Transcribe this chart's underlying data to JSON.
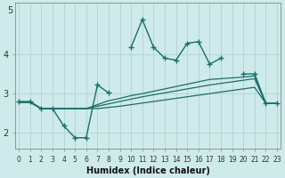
{
  "xlabel": "Humidex (Indice chaleur)",
  "bg_color": "#ceeaea",
  "grid_color": "#b0d4d4",
  "line_color": "#1a6e6a",
  "x_values": [
    0,
    1,
    2,
    3,
    4,
    5,
    6,
    7,
    8,
    9,
    10,
    11,
    12,
    13,
    14,
    15,
    16,
    17,
    18,
    19,
    20,
    21,
    22,
    23
  ],
  "line1_y": [
    2.8,
    2.8,
    2.62,
    2.62,
    2.18,
    1.88,
    1.88,
    3.22,
    3.02,
    null,
    4.18,
    4.88,
    4.18,
    3.9,
    3.85,
    4.28,
    4.32,
    3.75,
    3.9,
    null,
    3.5,
    3.5,
    2.75,
    2.75
  ],
  "line2_y": [
    2.78,
    2.78,
    2.62,
    2.62,
    2.62,
    2.62,
    2.62,
    2.72,
    2.82,
    2.88,
    2.95,
    3.0,
    3.06,
    3.12,
    3.18,
    3.24,
    3.3,
    3.36,
    3.38,
    3.4,
    3.42,
    3.45,
    2.75,
    2.75
  ],
  "line3_y": [
    2.78,
    2.78,
    2.62,
    2.62,
    2.62,
    2.62,
    2.62,
    2.68,
    2.74,
    2.8,
    2.86,
    2.92,
    2.97,
    3.02,
    3.07,
    3.12,
    3.17,
    3.22,
    3.26,
    3.3,
    3.34,
    3.38,
    2.75,
    2.75
  ],
  "line4_y": [
    2.78,
    2.78,
    2.62,
    2.62,
    2.62,
    2.62,
    2.62,
    2.62,
    2.65,
    2.68,
    2.72,
    2.76,
    2.8,
    2.84,
    2.88,
    2.92,
    2.96,
    3.0,
    3.04,
    3.08,
    3.12,
    3.16,
    2.75,
    2.75
  ],
  "ylim": [
    1.6,
    5.3
  ],
  "yticks": [
    2,
    3,
    4
  ],
  "ytop_label": "5",
  "xticks": [
    0,
    1,
    2,
    3,
    4,
    5,
    6,
    7,
    8,
    9,
    10,
    11,
    12,
    13,
    14,
    15,
    16,
    17,
    18,
    19,
    20,
    21,
    22,
    23
  ],
  "xlim": [
    -0.3,
    23.3
  ]
}
